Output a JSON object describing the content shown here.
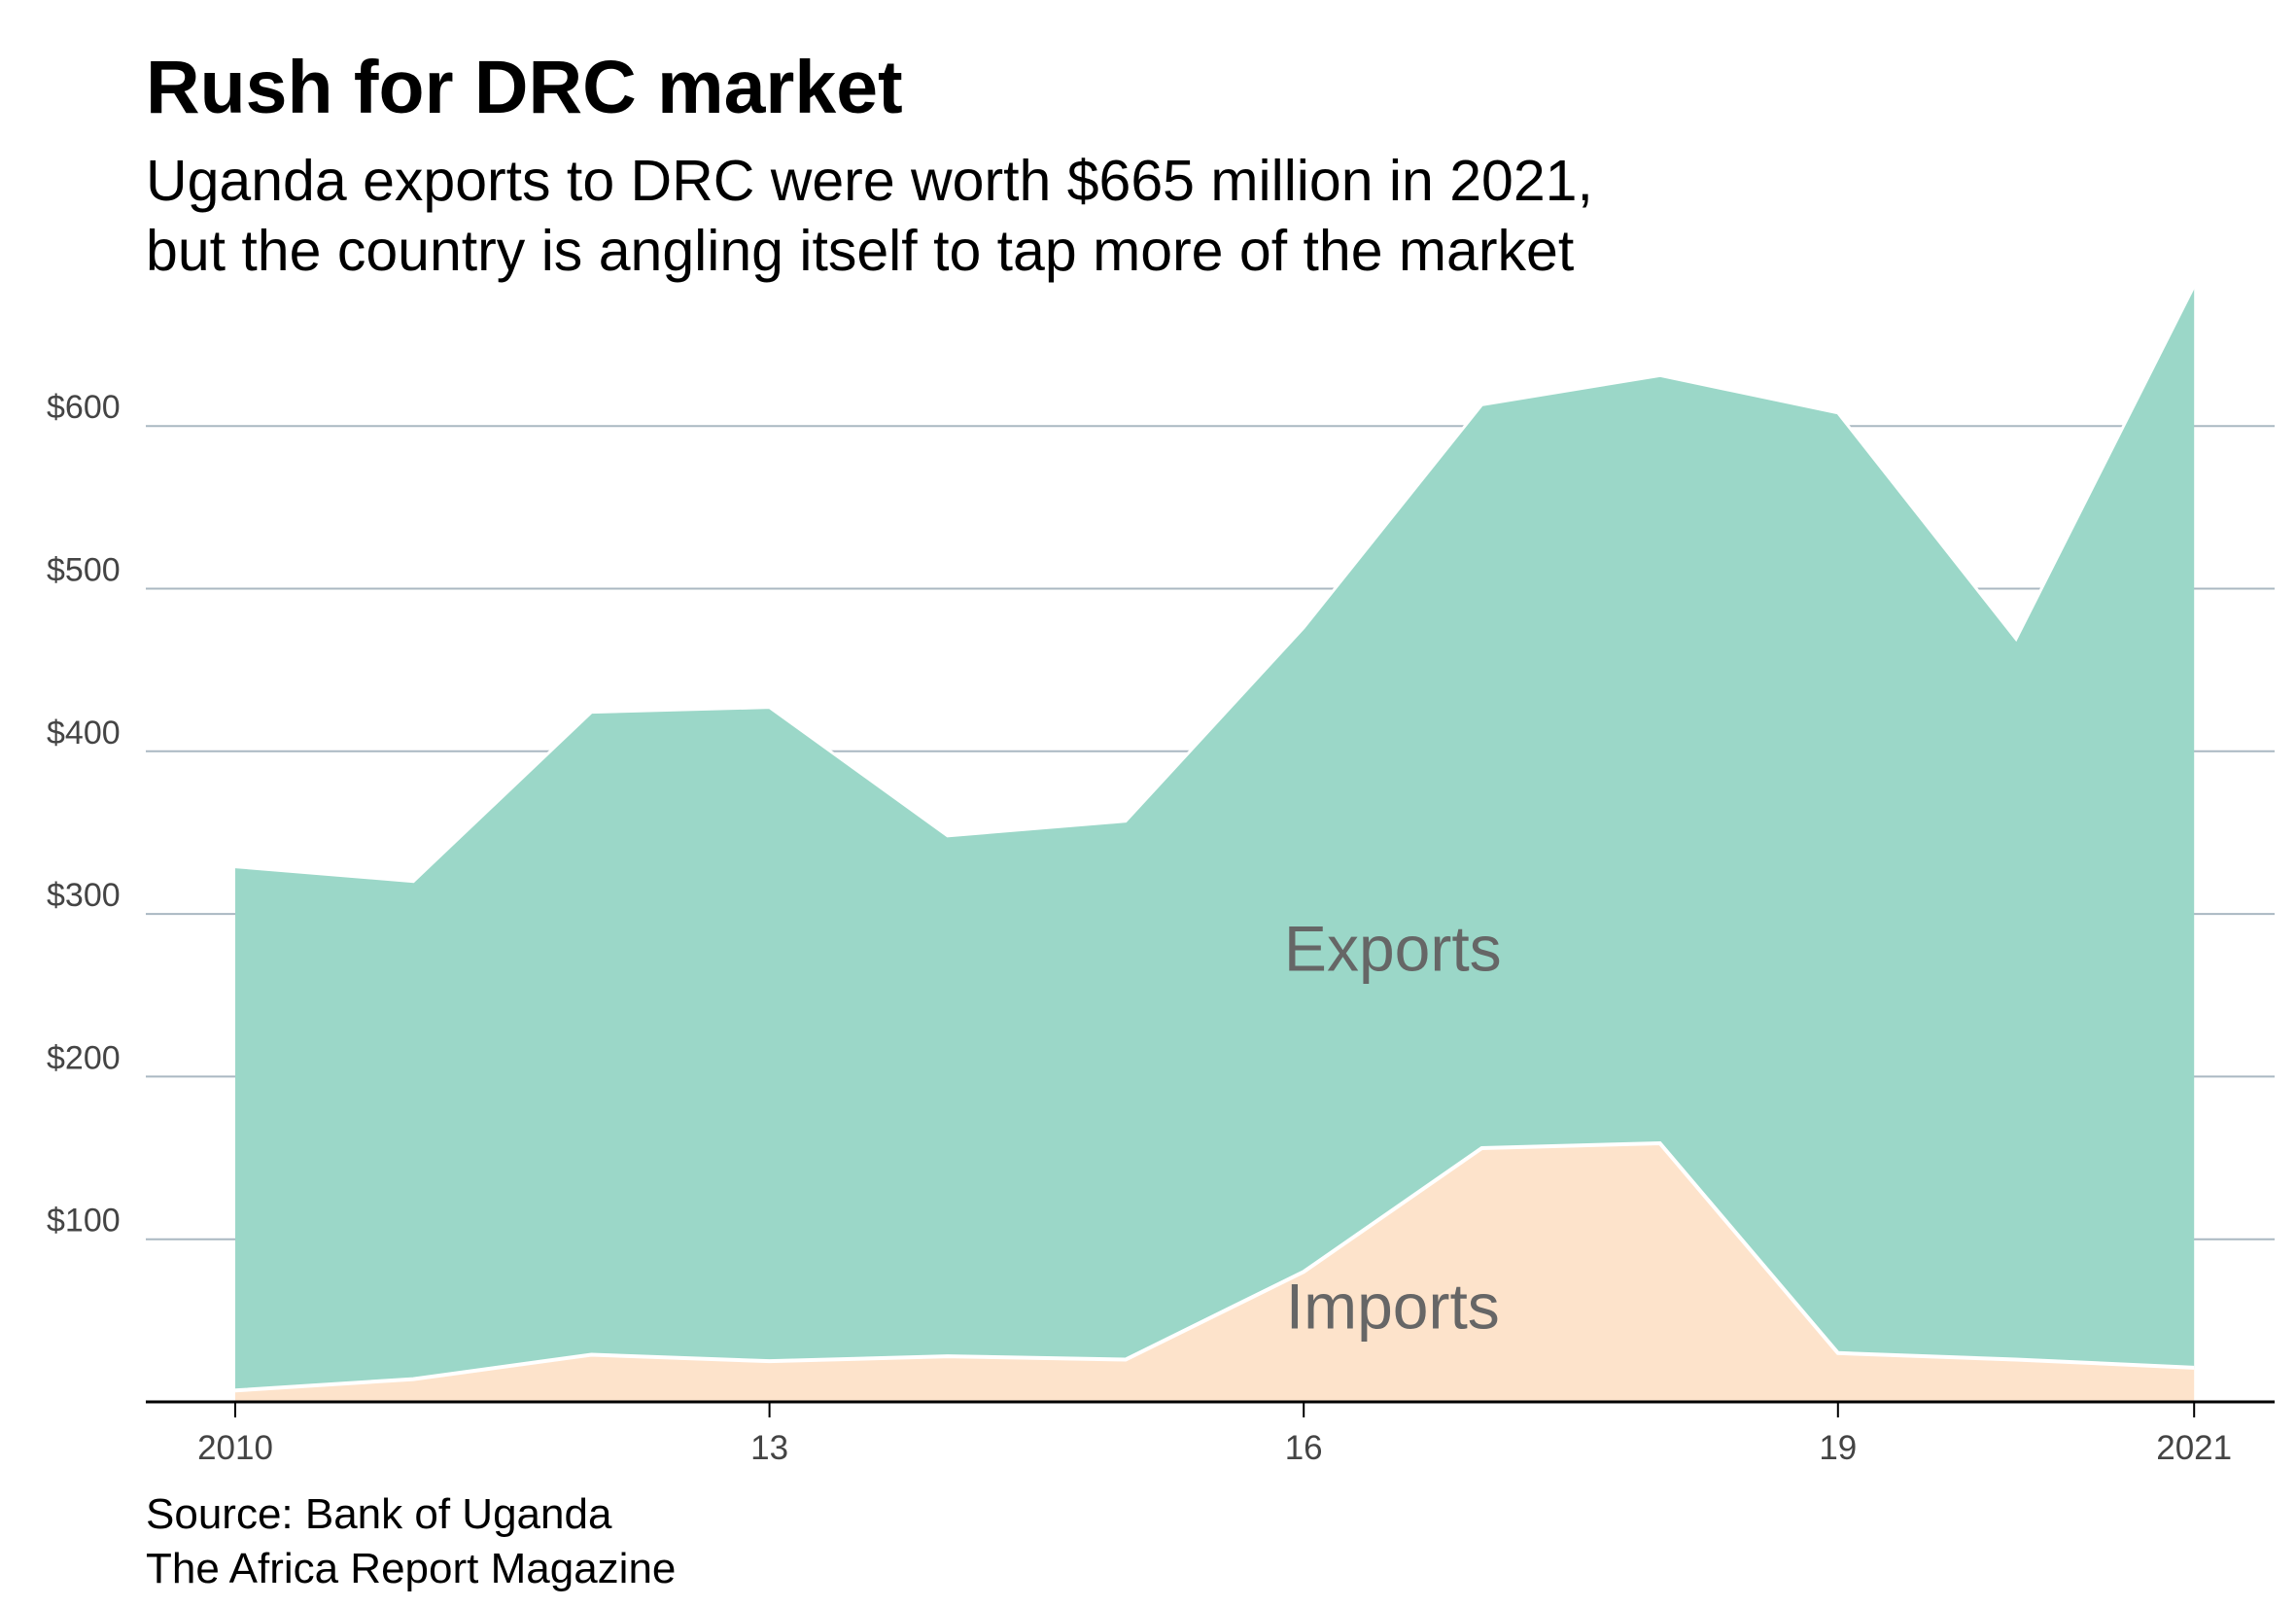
{
  "title": "Rush for DRC market",
  "subtitle": [
    "Uganda exports to DRC were worth $665 million in 2021,",
    "but the country is angling itself to tap more of the market"
  ],
  "source": [
    "Source: Bank of Uganda",
    "The Africa Report Magazine"
  ],
  "colors": {
    "exports": "#9bd7c8",
    "imports": "#fde3cb",
    "grid": "#aab8c2",
    "axis": "#000000",
    "label": "#666666",
    "tick": "#444444"
  },
  "chart_data": {
    "type": "area",
    "stacked": true,
    "x": [
      2010,
      2011,
      2012,
      2013,
      2014,
      2015,
      2016,
      2017,
      2018,
      2019,
      2020,
      2021
    ],
    "x_tick_labels": [
      {
        "x": 2010,
        "label": "2010"
      },
      {
        "x": 2013,
        "label": "13"
      },
      {
        "x": 2016,
        "label": "16"
      },
      {
        "x": 2019,
        "label": "19"
      },
      {
        "x": 2021,
        "label": "2021"
      }
    ],
    "y_tick_labels": [
      {
        "y": 100,
        "label": "$100"
      },
      {
        "y": 200,
        "label": "$200"
      },
      {
        "y": 300,
        "label": "$300"
      },
      {
        "y": 400,
        "label": "$400"
      },
      {
        "y": 500,
        "label": "$500"
      },
      {
        "y": 600,
        "label": "$600"
      }
    ],
    "ylim": [
      0,
      690
    ],
    "xlim": [
      2009.5,
      2021.5
    ],
    "grid": true,
    "series": [
      {
        "name": "Imports",
        "values": [
          7,
          14,
          29,
          25,
          28,
          26,
          80,
          156,
          159,
          30,
          26,
          21
        ]
      },
      {
        "name": "Exports",
        "values": [
          322,
          306,
          395,
          402,
          320,
          331,
          396,
          457,
          472,
          578,
          443,
          665
        ]
      }
    ],
    "series_labels": [
      {
        "text": "Exports",
        "x": 2016.5,
        "y": 265
      },
      {
        "text": "Imports",
        "x": 2016.5,
        "y": 45
      }
    ]
  }
}
